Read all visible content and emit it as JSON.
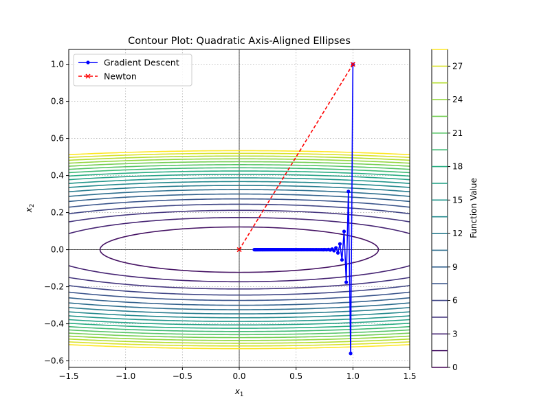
{
  "chart_data": {
    "type": "contour",
    "title": "Contour Plot: Quadratic Axis-Aligned Ellipses",
    "xlabel": "x",
    "xlabel_sub": "1",
    "ylabel": "x",
    "ylabel_sub": "2",
    "xlim": [
      -1.5,
      1.5
    ],
    "ylim": [
      -0.635,
      1.08
    ],
    "xticks": [
      -1.5,
      -1.0,
      -0.5,
      0.0,
      0.5,
      1.0,
      1.5
    ],
    "xtick_labels": [
      "−1.5",
      "−1.0",
      "−0.5",
      "0.0",
      "0.5",
      "1.0",
      "1.5"
    ],
    "yticks": [
      -0.6,
      -0.4,
      -0.2,
      0.0,
      0.2,
      0.4,
      0.6,
      0.8,
      1.0
    ],
    "ytick_labels": [
      "−0.6",
      "−0.4",
      "−0.2",
      "0.0",
      "0.2",
      "0.4",
      "0.6",
      "0.8",
      "1.0"
    ],
    "grid": true,
    "function": {
      "a": 1.0,
      "b": 100.0,
      "expression_hint": "a*x1^2 + b*x2^2"
    },
    "contour_levels": [
      1.5,
      3,
      4.5,
      6,
      7.5,
      9,
      10.5,
      12,
      13.5,
      15,
      16.5,
      18,
      19.5,
      21,
      22.5,
      24,
      25.5,
      27,
      28.5
    ],
    "colorbar": {
      "label": "Function Value",
      "range": [
        0,
        28.5
      ],
      "ticks": [
        0,
        3,
        6,
        9,
        12,
        15,
        18,
        21,
        24,
        27
      ],
      "tick_labels": [
        "0",
        "3",
        "6",
        "9",
        "12",
        "15",
        "18",
        "21",
        "24",
        "27"
      ]
    },
    "legend_position": "top-left",
    "series": [
      {
        "name": "Gradient Descent",
        "color": "#0000ff",
        "style": "solid",
        "marker": "circle",
        "x": [
          1.0,
          0.98,
          0.9604,
          0.9412,
          0.9224,
          0.9039,
          0.8858,
          0.8681,
          0.8508,
          0.8337,
          0.8171,
          0.8007,
          0.7847,
          0.769,
          0.7536,
          0.7386,
          0.7238,
          0.7093,
          0.6951,
          0.6812,
          0.6676,
          0.6543,
          0.6412,
          0.6283,
          0.6158,
          0.6035,
          0.5914,
          0.5796,
          0.568,
          0.5566,
          0.5455,
          0.5346,
          0.5239,
          0.5134,
          0.5031,
          0.4931,
          0.4832,
          0.4735,
          0.4641,
          0.4548,
          0.4457,
          0.4368,
          0.428,
          0.4195,
          0.4111,
          0.4029,
          0.3948,
          0.3869,
          0.3792,
          0.3716,
          0.3642,
          0.3569,
          0.3497,
          0.3428,
          0.3359,
          0.3292,
          0.3226,
          0.3161,
          0.3098,
          0.3036,
          0.2976,
          0.2916,
          0.2858,
          0.2801,
          0.2745,
          0.269,
          0.2636,
          0.2583,
          0.2531,
          0.2481,
          0.2431,
          0.2383,
          0.2335,
          0.2288,
          0.2242,
          0.2198,
          0.2154,
          0.2111,
          0.2068,
          0.2027,
          0.1986,
          0.1947,
          0.1908,
          0.187,
          0.1832,
          0.1796,
          0.176,
          0.1725,
          0.169,
          0.1656,
          0.1623,
          0.1591,
          0.1559,
          0.1528,
          0.1497,
          0.1467,
          0.1438,
          0.1409,
          0.1381,
          0.1353,
          0.1326
        ],
        "y": [
          1.0,
          -0.56,
          0.3136,
          -0.1756,
          0.0983,
          -0.0551,
          0.0308,
          -0.0173,
          0.0097,
          -0.0054,
          0.003,
          -0.0017,
          0.0009,
          -0.0005,
          0.0003,
          -0.0002,
          0.0001,
          -0.0001,
          0.0,
          0.0,
          0.0,
          0.0,
          0.0,
          0.0,
          0.0,
          0.0,
          0.0,
          0.0,
          0.0,
          0.0,
          0.0,
          0.0,
          0.0,
          0.0,
          0.0,
          0.0,
          0.0,
          0.0,
          0.0,
          0.0,
          0.0,
          0.0,
          0.0,
          0.0,
          0.0,
          0.0,
          0.0,
          0.0,
          0.0,
          0.0,
          0.0,
          0.0,
          0.0,
          0.0,
          0.0,
          0.0,
          0.0,
          0.0,
          0.0,
          0.0,
          0.0,
          0.0,
          0.0,
          0.0,
          0.0,
          0.0,
          0.0,
          0.0,
          0.0,
          0.0,
          0.0,
          0.0,
          0.0,
          0.0,
          0.0,
          0.0,
          0.0,
          0.0,
          0.0,
          0.0,
          0.0,
          0.0,
          0.0,
          0.0,
          0.0,
          0.0,
          0.0,
          0.0,
          0.0,
          0.0,
          0.0,
          0.0,
          0.0,
          0.0,
          0.0,
          0.0,
          0.0,
          0.0,
          0.0,
          0.0,
          0.0
        ]
      },
      {
        "name": "Newton",
        "color": "#ff0000",
        "style": "dashed",
        "marker": "x",
        "x": [
          1.0,
          0.0
        ],
        "y": [
          1.0,
          0.0
        ]
      }
    ]
  }
}
